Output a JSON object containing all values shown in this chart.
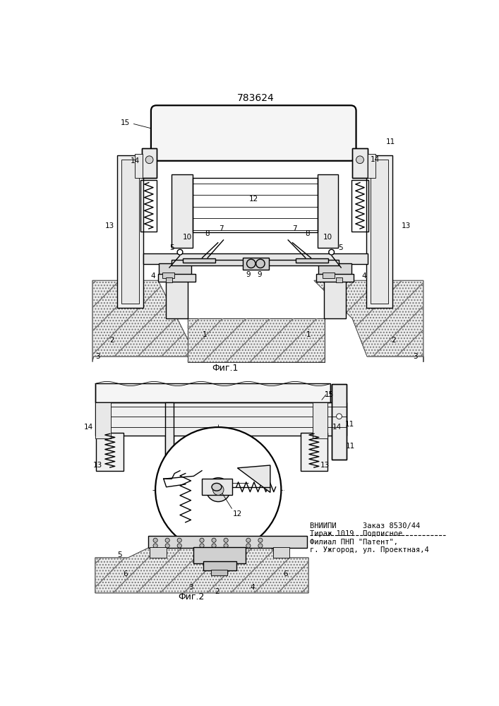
{
  "title": "783624",
  "fig1_label": "Фиг.1",
  "fig2_label": "Фиг.2",
  "bg_color": "#ffffff",
  "line_color": "#000000",
  "footer_line1": "ВНИИПИ      Заказ 8530/44",
  "footer_line2": "Тираж 1019  Подписное",
  "footer_line3": "Филиал ПНП \"Патент\",",
  "footer_line4": "г. Ужгород, ул. Проектная,4",
  "dpi": 100,
  "figsize": [
    7.07,
    10.0
  ]
}
